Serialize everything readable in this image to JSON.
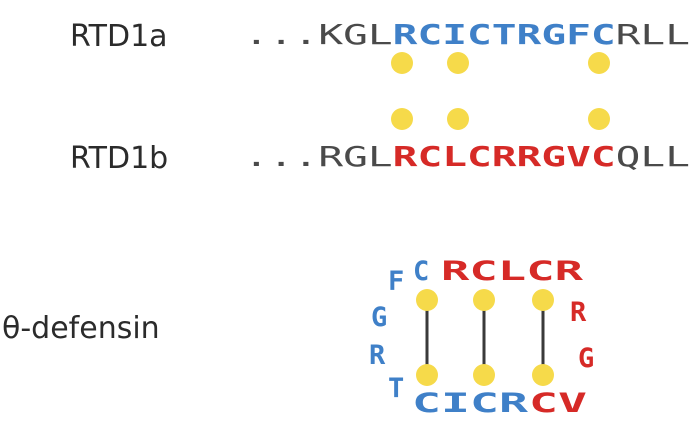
{
  "colors": {
    "blue": "#3f80c8",
    "red": "#d62a27",
    "gray": "#4a4a4a",
    "dot": "#f6da4a",
    "bond": "#3a3a3a"
  },
  "rows": {
    "rtd1a": {
      "label": "RTD1a",
      "ellipsis": "...",
      "prefix": "KGL",
      "core": "RCICTRGFC",
      "suffix": "RLL"
    },
    "rtd1b": {
      "label": "RTD1b",
      "ellipsis": "...",
      "prefix": "RGL",
      "core": "RCLCRRGVC",
      "suffix": "QLL"
    }
  },
  "theta": {
    "label": "θ-defensin",
    "top_left": "C",
    "top_right": "RCLCR",
    "right_1": "R",
    "right_2": "G",
    "bottom_right": "CV",
    "bottom_left": "CICR",
    "left_F": "F",
    "left_G": "G",
    "left_R": "R",
    "left_T": "T"
  }
}
